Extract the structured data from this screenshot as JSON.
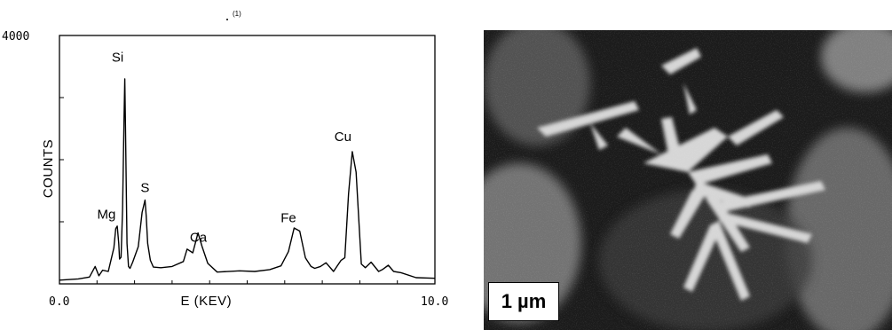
{
  "chart_data": {
    "type": "line",
    "title": "",
    "top_marker": "(1)",
    "xlabel": "E (KEV)",
    "ylabel": "COUNTS",
    "xlim": [
      0.0,
      10.0
    ],
    "ylim": [
      0,
      4000
    ],
    "x_tick_labels": [
      "0.0",
      "10.0"
    ],
    "y_tick_labels": [
      "4000"
    ],
    "grid": false,
    "series": [
      {
        "x": [
          0.0,
          0.5,
          0.8,
          0.95,
          1.05,
          1.15,
          1.3,
          1.45,
          1.5,
          1.54,
          1.58,
          1.6,
          1.64,
          1.68,
          1.72,
          1.74,
          1.76,
          1.8,
          1.84,
          1.88,
          1.95,
          2.1,
          2.2,
          2.28,
          2.31,
          2.35,
          2.42,
          2.5,
          2.7,
          3.0,
          3.3,
          3.4,
          3.55,
          3.69,
          3.8,
          3.95,
          4.2,
          4.8,
          5.2,
          5.6,
          5.9,
          6.1,
          6.25,
          6.4,
          6.55,
          6.7,
          6.8,
          6.95,
          7.1,
          7.3,
          7.5,
          7.6,
          7.7,
          7.8,
          7.9,
          8.04,
          8.15,
          8.3,
          8.5,
          8.6,
          8.76,
          8.9,
          9.1,
          9.5,
          10.0
        ],
        "y": [
          60,
          80,
          110,
          280,
          130,
          220,
          200,
          580,
          890,
          930,
          650,
          400,
          430,
          1200,
          2700,
          3300,
          2500,
          650,
          280,
          250,
          350,
          600,
          1150,
          1350,
          1100,
          650,
          380,
          270,
          260,
          280,
          360,
          560,
          500,
          820,
          600,
          330,
          190,
          210,
          200,
          230,
          290,
          520,
          900,
          850,
          420,
          280,
          250,
          280,
          340,
          200,
          380,
          420,
          1450,
          2130,
          1800,
          320,
          260,
          350,
          200,
          230,
          300,
          200,
          180,
          100,
          90
        ]
      }
    ],
    "annotations": [
      {
        "label": "Mg",
        "x": 1.25,
        "y": 1050
      },
      {
        "label": "Si",
        "x": 1.55,
        "y": 3580
      },
      {
        "label": "S",
        "x": 2.28,
        "y": 1480
      },
      {
        "label": "Ca",
        "x": 3.7,
        "y": 680
      },
      {
        "label": "Fe",
        "x": 6.1,
        "y": 990
      },
      {
        "label": "Cu",
        "x": 7.55,
        "y": 2300
      }
    ]
  },
  "micrograph": {
    "scale_label": "1 µm"
  }
}
